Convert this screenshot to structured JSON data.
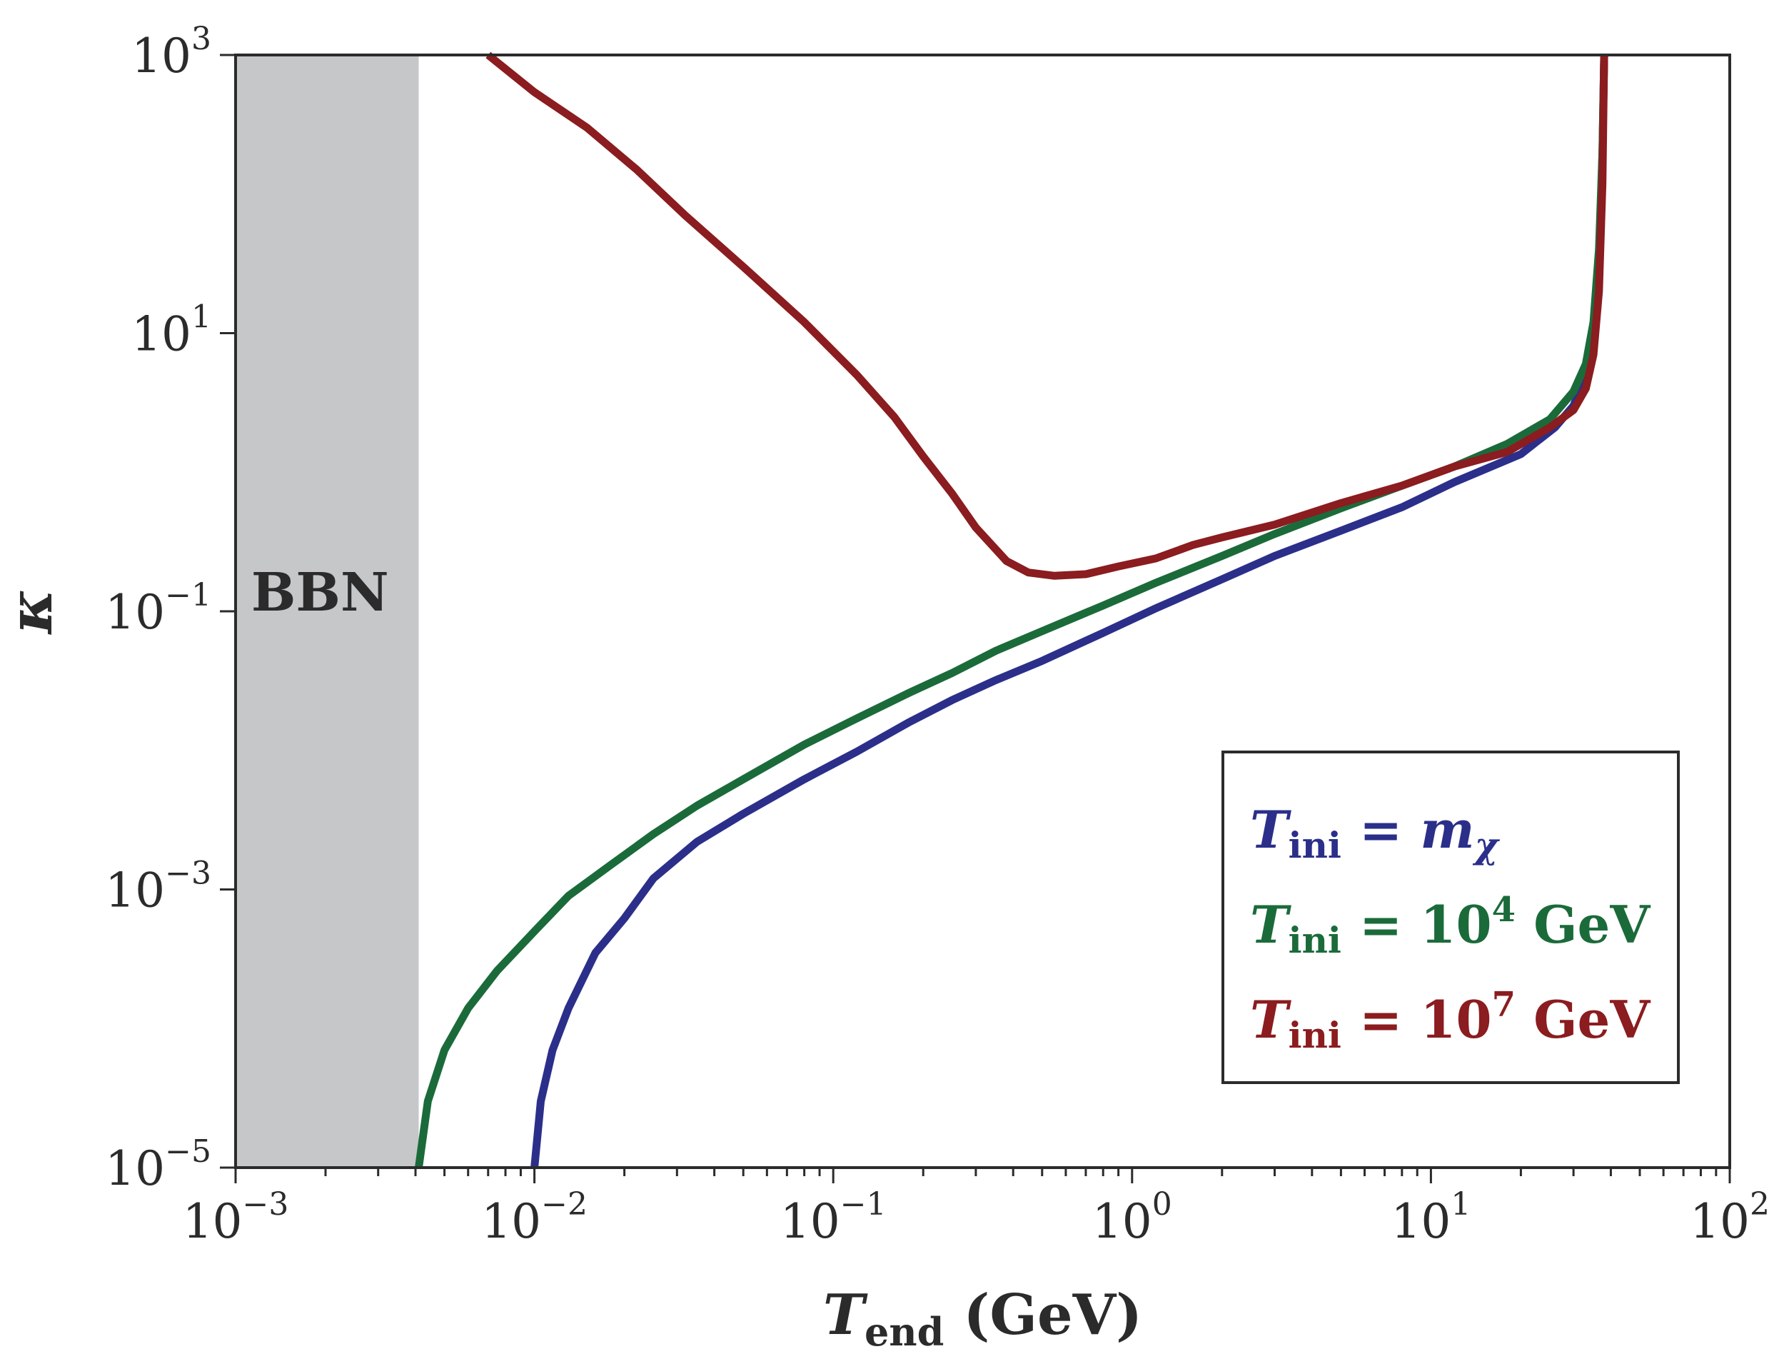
{
  "chart_data": {
    "type": "line",
    "xscale": "log",
    "yscale": "log",
    "xlim": [
      0.001,
      100
    ],
    "ylim": [
      1e-05,
      1000
    ],
    "xlabel": {
      "main": "T",
      "sub": "end",
      "unit": " (GeV)"
    },
    "ylabel": "κ",
    "x_ticks": [
      {
        "base": "10",
        "exp": "−3",
        "value": 0.001
      },
      {
        "base": "10",
        "exp": "−2",
        "value": 0.01
      },
      {
        "base": "10",
        "exp": "−1",
        "value": 0.1
      },
      {
        "base": "10",
        "exp": "0",
        "value": 1
      },
      {
        "base": "10",
        "exp": "1",
        "value": 10
      },
      {
        "base": "10",
        "exp": "2",
        "value": 100
      }
    ],
    "y_ticks": [
      {
        "base": "10",
        "exp": "−5",
        "value": 1e-05
      },
      {
        "base": "10",
        "exp": "−3",
        "value": 0.001
      },
      {
        "base": "10",
        "exp": "−1",
        "value": 0.1
      },
      {
        "base": "10",
        "exp": "1",
        "value": 10
      },
      {
        "base": "10",
        "exp": "3",
        "value": 1000
      }
    ],
    "shaded_region": {
      "label": "BBN",
      "x_range": [
        0.001,
        0.0041
      ],
      "color": "#c6c7c9"
    },
    "series": [
      {
        "name": "T_ini = m_χ",
        "color": "#2b2f8a",
        "points": [
          [
            0.01,
            1e-05
          ],
          [
            0.0105,
            3e-05
          ],
          [
            0.0115,
            7e-05
          ],
          [
            0.013,
            0.00014
          ],
          [
            0.016,
            0.00035
          ],
          [
            0.02,
            0.00062
          ],
          [
            0.025,
            0.0012
          ],
          [
            0.035,
            0.0022
          ],
          [
            0.05,
            0.0035
          ],
          [
            0.08,
            0.0062
          ],
          [
            0.12,
            0.0098
          ],
          [
            0.18,
            0.016
          ],
          [
            0.25,
            0.023
          ],
          [
            0.35,
            0.032
          ],
          [
            0.5,
            0.044
          ],
          [
            0.8,
            0.07
          ],
          [
            1.2,
            0.105
          ],
          [
            2.0,
            0.17
          ],
          [
            3.0,
            0.25
          ],
          [
            5.0,
            0.38
          ],
          [
            8.0,
            0.56
          ],
          [
            12.0,
            0.85
          ],
          [
            20.0,
            1.35
          ],
          [
            26.0,
            2.1
          ],
          [
            30.0,
            3.0
          ],
          [
            33.0,
            5.0
          ],
          [
            35.0,
            9.0
          ],
          [
            36.5,
            30.0
          ],
          [
            37.5,
            200.0
          ],
          [
            38.0,
            1000.0
          ]
        ]
      },
      {
        "name": "T_ini = 10^4 GeV",
        "color": "#1b6b3a",
        "points": [
          [
            0.0041,
            1e-05
          ],
          [
            0.0044,
            3e-05
          ],
          [
            0.005,
            7e-05
          ],
          [
            0.006,
            0.00014
          ],
          [
            0.0075,
            0.00026
          ],
          [
            0.01,
            0.0005
          ],
          [
            0.013,
            0.0009
          ],
          [
            0.018,
            0.0015
          ],
          [
            0.025,
            0.0025
          ],
          [
            0.035,
            0.004
          ],
          [
            0.05,
            0.0062
          ],
          [
            0.08,
            0.011
          ],
          [
            0.12,
            0.017
          ],
          [
            0.18,
            0.026
          ],
          [
            0.25,
            0.036
          ],
          [
            0.35,
            0.052
          ],
          [
            0.5,
            0.072
          ],
          [
            0.8,
            0.11
          ],
          [
            1.2,
            0.16
          ],
          [
            2.0,
            0.25
          ],
          [
            3.0,
            0.36
          ],
          [
            5.0,
            0.55
          ],
          [
            8.0,
            0.8
          ],
          [
            12.0,
            1.1
          ],
          [
            18.0,
            1.6
          ],
          [
            25.0,
            2.4
          ],
          [
            30.0,
            3.8
          ],
          [
            33.0,
            6.0
          ],
          [
            35.0,
            12.0
          ],
          [
            36.5,
            40.0
          ],
          [
            37.5,
            200.0
          ],
          [
            38.0,
            1000.0
          ]
        ]
      },
      {
        "name": "T_ini = 10^7 GeV",
        "color": "#8b1c1f",
        "points": [
          [
            0.007,
            1000.0
          ],
          [
            0.01,
            540.0
          ],
          [
            0.015,
            300.0
          ],
          [
            0.022,
            150.0
          ],
          [
            0.032,
            70.0
          ],
          [
            0.05,
            30.0
          ],
          [
            0.08,
            12.0
          ],
          [
            0.12,
            5.0
          ],
          [
            0.16,
            2.5
          ],
          [
            0.2,
            1.3
          ],
          [
            0.25,
            0.7
          ],
          [
            0.3,
            0.4
          ],
          [
            0.38,
            0.23
          ],
          [
            0.45,
            0.19
          ],
          [
            0.55,
            0.18
          ],
          [
            0.7,
            0.185
          ],
          [
            0.9,
            0.21
          ],
          [
            1.2,
            0.24
          ],
          [
            1.6,
            0.3
          ],
          [
            2.0,
            0.34
          ],
          [
            3.0,
            0.42
          ],
          [
            5.0,
            0.6
          ],
          [
            8.0,
            0.8
          ],
          [
            12.0,
            1.1
          ],
          [
            18.0,
            1.4
          ],
          [
            25.0,
            2.1
          ],
          [
            30.0,
            2.8
          ],
          [
            33.0,
            4.0
          ],
          [
            35.0,
            7.0
          ],
          [
            36.5,
            20.0
          ],
          [
            37.5,
            120.0
          ],
          [
            38.0,
            1000.0
          ]
        ]
      }
    ],
    "legend": {
      "position": "lower-right",
      "entries": [
        {
          "color": "#2b2f8a",
          "lhs": "T",
          "sub": "ini",
          "eq": " = ",
          "rhs_italic": "m",
          "rhs_sub": "χ",
          "rhs_exp": "",
          "rhs_unit": ""
        },
        {
          "color": "#1b6b3a",
          "lhs": "T",
          "sub": "ini",
          "eq": " = ",
          "rhs_italic": "",
          "rhs_base": "10",
          "rhs_exp": "4",
          "rhs_unit": " GeV"
        },
        {
          "color": "#8b1c1f",
          "lhs": "T",
          "sub": "ini",
          "eq": " = ",
          "rhs_italic": "",
          "rhs_base": "10",
          "rhs_exp": "7",
          "rhs_unit": " GeV"
        }
      ]
    }
  }
}
